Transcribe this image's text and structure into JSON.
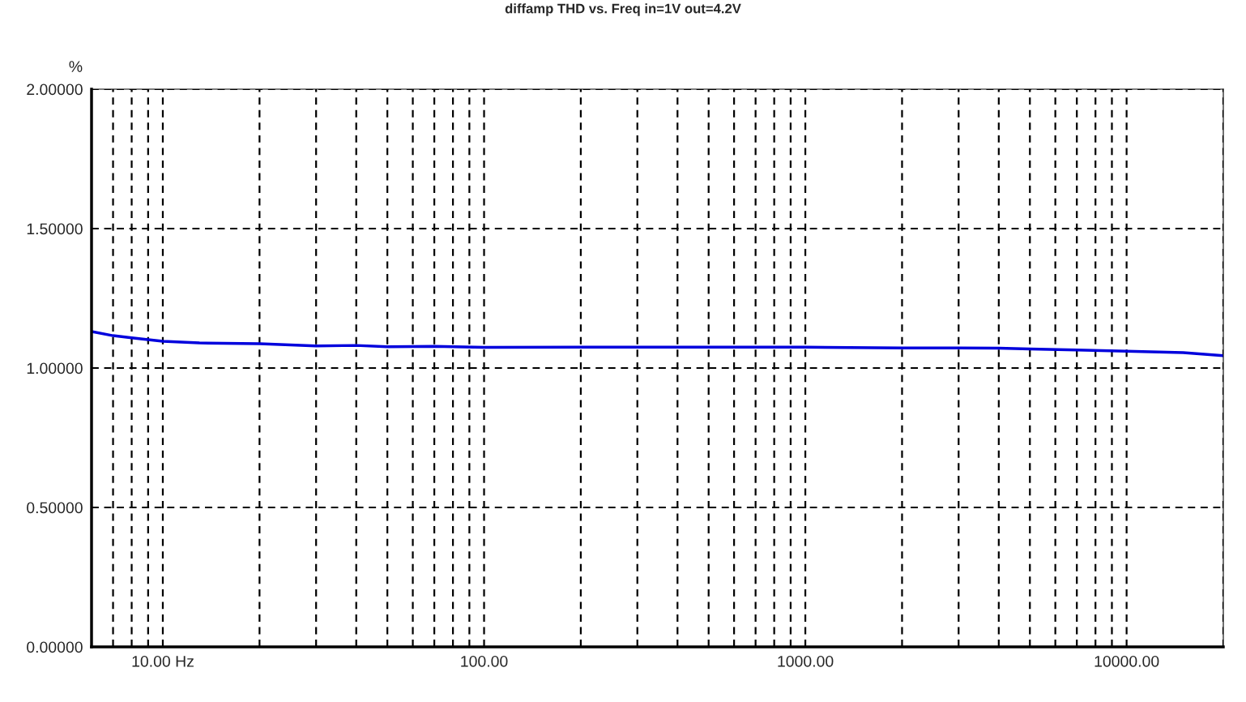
{
  "chart_data": {
    "type": "line",
    "title": "diffamp THD vs. Freq in=1V out=4.2V",
    "ylabel": "%",
    "log": "x",
    "grid": true,
    "line_style": "solid",
    "marker": "none",
    "xlim": [
      6,
      20000
    ],
    "ylim": [
      0,
      2
    ],
    "xticks": [
      {
        "value": 7,
        "label": null
      },
      {
        "value": 8,
        "label": null
      },
      {
        "value": 9,
        "label": null
      },
      {
        "value": 10,
        "label": "10.00 Hz"
      },
      {
        "value": 20,
        "label": null
      },
      {
        "value": 30,
        "label": null
      },
      {
        "value": 40,
        "label": null
      },
      {
        "value": 50,
        "label": null
      },
      {
        "value": 60,
        "label": null
      },
      {
        "value": 70,
        "label": null
      },
      {
        "value": 80,
        "label": null
      },
      {
        "value": 90,
        "label": null
      },
      {
        "value": 100,
        "label": "100.00"
      },
      {
        "value": 200,
        "label": null
      },
      {
        "value": 300,
        "label": null
      },
      {
        "value": 400,
        "label": null
      },
      {
        "value": 500,
        "label": null
      },
      {
        "value": 600,
        "label": null
      },
      {
        "value": 700,
        "label": null
      },
      {
        "value": 800,
        "label": null
      },
      {
        "value": 900,
        "label": null
      },
      {
        "value": 1000,
        "label": "1000.00"
      },
      {
        "value": 2000,
        "label": null
      },
      {
        "value": 3000,
        "label": null
      },
      {
        "value": 4000,
        "label": null
      },
      {
        "value": 5000,
        "label": null
      },
      {
        "value": 6000,
        "label": null
      },
      {
        "value": 7000,
        "label": null
      },
      {
        "value": 8000,
        "label": null
      },
      {
        "value": 9000,
        "label": null
      },
      {
        "value": 10000,
        "label": "10000.00"
      },
      {
        "value": 20000,
        "label": null
      }
    ],
    "yticks": [
      {
        "value": 0,
        "label": "0.00000"
      },
      {
        "value": 0.5,
        "label": "0.50000"
      },
      {
        "value": 1,
        "label": "1.00000"
      },
      {
        "value": 1.5,
        "label": "1.50000"
      },
      {
        "value": 2,
        "label": "2.00000"
      }
    ],
    "series": [
      {
        "color": "#0000dd",
        "x": [
          6,
          7,
          8,
          10,
          13,
          20,
          30,
          40,
          50,
          70,
          100,
          200,
          500,
          1000,
          2000,
          3000,
          4000,
          5000,
          7000,
          10000,
          15000,
          20000
        ],
        "values": [
          1.131,
          1.116,
          1.108,
          1.096,
          1.09,
          1.087,
          1.079,
          1.081,
          1.076,
          1.078,
          1.074,
          1.075,
          1.075,
          1.075,
          1.072,
          1.072,
          1.071,
          1.068,
          1.065,
          1.06,
          1.055,
          1.044
        ]
      }
    ]
  }
}
